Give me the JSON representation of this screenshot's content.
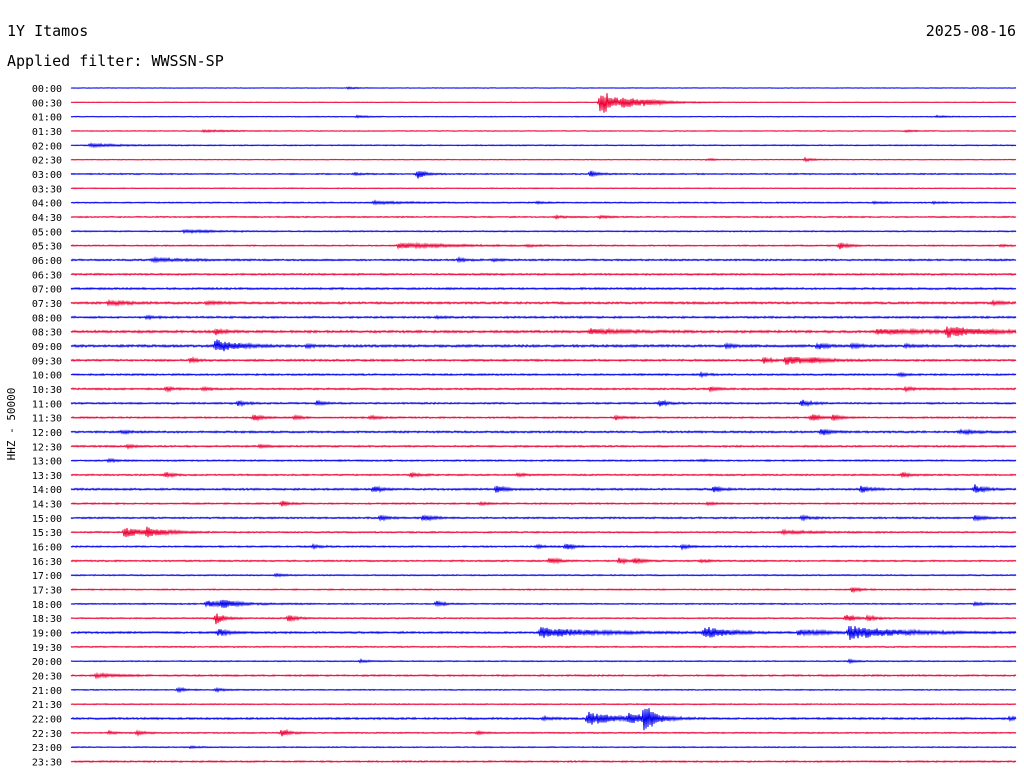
{
  "header": {
    "station": "1Y Itamos",
    "date": "2025-08-16",
    "filter": "Applied filter: WWSSN-SP"
  },
  "chart_data": {
    "type": "line",
    "title": "1Y Itamos",
    "subtitle": "Applied filter: WWSSN-SP",
    "ylabel": "HHZ - 50000",
    "row_labels": [
      "00:00",
      "00:30",
      "01:00",
      "01:30",
      "02:00",
      "02:30",
      "03:00",
      "03:30",
      "04:00",
      "04:30",
      "05:00",
      "05:30",
      "06:00",
      "06:30",
      "07:00",
      "07:30",
      "08:00",
      "08:30",
      "09:00",
      "09:30",
      "10:00",
      "10:30",
      "11:00",
      "11:30",
      "12:00",
      "12:30",
      "13:00",
      "13:30",
      "14:00",
      "14:30",
      "15:00",
      "15:30",
      "16:00",
      "16:30",
      "17:00",
      "17:30",
      "18:00",
      "18:30",
      "19:00",
      "19:30",
      "20:00",
      "20:30",
      "21:00",
      "21:30",
      "22:00",
      "22:30",
      "23:00",
      "23:30"
    ],
    "x_range_minutes": [
      0,
      30
    ],
    "colors": {
      "even_rows": "#0000ee",
      "odd_rows": "#ee0033"
    },
    "noise_level": [
      0.6,
      0.6,
      0.8,
      0.8,
      1.0,
      0.8,
      1.2,
      0.8,
      1.2,
      1.2,
      1.2,
      1.2,
      1.6,
      1.6,
      1.8,
      2.0,
      1.8,
      2.2,
      2.2,
      1.8,
      1.6,
      1.6,
      1.6,
      1.4,
      1.8,
      1.6,
      1.4,
      1.4,
      1.8,
      1.4,
      1.6,
      1.4,
      1.4,
      1.4,
      1.2,
      1.2,
      1.2,
      1.2,
      1.8,
      1.2,
      1.0,
      1.4,
      1.0,
      1.0,
      1.8,
      1.2,
      1.0,
      1.4
    ],
    "events": [
      {
        "row": 0,
        "t": 8.8,
        "amp": 2
      },
      {
        "row": 1,
        "t": 16.8,
        "amp": 28,
        "dur": 0.5
      },
      {
        "row": 1,
        "t": 17.5,
        "amp": 7,
        "dur": 1.0
      },
      {
        "row": 1,
        "t": 18.2,
        "amp": 3,
        "dur": 0.6
      },
      {
        "row": 2,
        "t": 9.1,
        "amp": 3
      },
      {
        "row": 2,
        "t": 27.5,
        "amp": 2
      },
      {
        "row": 3,
        "t": 4.2,
        "amp": 2,
        "dur": 0.8
      },
      {
        "row": 3,
        "t": 26.5,
        "amp": 2
      },
      {
        "row": 4,
        "t": 0.6,
        "amp": 3,
        "dur": 1.0
      },
      {
        "row": 5,
        "t": 20.2,
        "amp": 2
      },
      {
        "row": 5,
        "t": 23.3,
        "amp": 3
      },
      {
        "row": 6,
        "t": 11.0,
        "amp": 9
      },
      {
        "row": 6,
        "t": 16.5,
        "amp": 6
      },
      {
        "row": 6,
        "t": 9.0,
        "amp": 2
      },
      {
        "row": 8,
        "t": 9.6,
        "amp": 3,
        "dur": 0.8
      },
      {
        "row": 8,
        "t": 14.8,
        "amp": 2
      },
      {
        "row": 8,
        "t": 27.4,
        "amp": 2
      },
      {
        "row": 8,
        "t": 25.5,
        "amp": 2
      },
      {
        "row": 9,
        "t": 15.4,
        "amp": 3
      },
      {
        "row": 9,
        "t": 16.8,
        "amp": 3
      },
      {
        "row": 10,
        "t": 3.6,
        "amp": 3,
        "dur": 0.8
      },
      {
        "row": 11,
        "t": 10.4,
        "amp": 5,
        "dur": 1.5
      },
      {
        "row": 11,
        "t": 14.5,
        "amp": 2
      },
      {
        "row": 11,
        "t": 24.4,
        "amp": 7
      },
      {
        "row": 11,
        "t": 29.5,
        "amp": 2
      },
      {
        "row": 12,
        "t": 2.6,
        "amp": 3,
        "dur": 1.0
      },
      {
        "row": 12,
        "t": 12.3,
        "amp": 3
      },
      {
        "row": 12,
        "t": 13.4,
        "amp": 2
      },
      {
        "row": 15,
        "t": 1.2,
        "amp": 4,
        "dur": 0.6
      },
      {
        "row": 15,
        "t": 4.3,
        "amp": 3,
        "dur": 0.5
      },
      {
        "row": 15,
        "t": 29.3,
        "amp": 4
      },
      {
        "row": 16,
        "t": 2.4,
        "amp": 3
      },
      {
        "row": 16,
        "t": 11.6,
        "amp": 2
      },
      {
        "row": 17,
        "t": 4.6,
        "amp": 6
      },
      {
        "row": 17,
        "t": 16.5,
        "amp": 5,
        "dur": 1.0
      },
      {
        "row": 17,
        "t": 25.6,
        "amp": 5,
        "dur": 1.5
      },
      {
        "row": 17,
        "t": 27.8,
        "amp": 11,
        "dur": 0.9
      },
      {
        "row": 18,
        "t": 4.6,
        "amp": 14,
        "dur": 0.6
      },
      {
        "row": 18,
        "t": 7.5,
        "amp": 3
      },
      {
        "row": 18,
        "t": 20.8,
        "amp": 4
      },
      {
        "row": 18,
        "t": 23.7,
        "amp": 6
      },
      {
        "row": 18,
        "t": 24.8,
        "amp": 4
      },
      {
        "row": 18,
        "t": 26.5,
        "amp": 3
      },
      {
        "row": 19,
        "t": 3.8,
        "amp": 4
      },
      {
        "row": 19,
        "t": 22.0,
        "amp": 5
      },
      {
        "row": 19,
        "t": 22.7,
        "amp": 8,
        "dur": 0.8
      },
      {
        "row": 19,
        "t": 23.5,
        "amp": 4
      },
      {
        "row": 20,
        "t": 20.0,
        "amp": 3
      },
      {
        "row": 20,
        "t": 26.3,
        "amp": 3
      },
      {
        "row": 21,
        "t": 3.0,
        "amp": 4
      },
      {
        "row": 21,
        "t": 4.2,
        "amp": 3
      },
      {
        "row": 21,
        "t": 20.3,
        "amp": 4
      },
      {
        "row": 21,
        "t": 26.5,
        "amp": 4
      },
      {
        "row": 22,
        "t": 5.3,
        "amp": 5
      },
      {
        "row": 22,
        "t": 7.8,
        "amp": 4
      },
      {
        "row": 22,
        "t": 18.7,
        "amp": 5
      },
      {
        "row": 22,
        "t": 23.2,
        "amp": 7
      },
      {
        "row": 23,
        "t": 5.8,
        "amp": 7
      },
      {
        "row": 23,
        "t": 7.1,
        "amp": 4
      },
      {
        "row": 23,
        "t": 9.5,
        "amp": 4
      },
      {
        "row": 23,
        "t": 17.3,
        "amp": 4
      },
      {
        "row": 23,
        "t": 23.5,
        "amp": 8
      },
      {
        "row": 23,
        "t": 24.2,
        "amp": 5
      },
      {
        "row": 24,
        "t": 1.6,
        "amp": 3
      },
      {
        "row": 24,
        "t": 23.8,
        "amp": 7
      },
      {
        "row": 24,
        "t": 28.2,
        "amp": 3,
        "dur": 0.7
      },
      {
        "row": 25,
        "t": 1.8,
        "amp": 3
      },
      {
        "row": 25,
        "t": 6.0,
        "amp": 3
      },
      {
        "row": 26,
        "t": 1.2,
        "amp": 3
      },
      {
        "row": 26,
        "t": 20.0,
        "amp": 2
      },
      {
        "row": 27,
        "t": 3.0,
        "amp": 5
      },
      {
        "row": 27,
        "t": 10.8,
        "amp": 5
      },
      {
        "row": 27,
        "t": 14.2,
        "amp": 3
      },
      {
        "row": 27,
        "t": 26.4,
        "amp": 5
      },
      {
        "row": 28,
        "t": 9.6,
        "amp": 6
      },
      {
        "row": 28,
        "t": 13.5,
        "amp": 7
      },
      {
        "row": 28,
        "t": 20.4,
        "amp": 6
      },
      {
        "row": 28,
        "t": 25.1,
        "amp": 7
      },
      {
        "row": 28,
        "t": 28.7,
        "amp": 9
      },
      {
        "row": 29,
        "t": 6.7,
        "amp": 5
      },
      {
        "row": 29,
        "t": 13.0,
        "amp": 3
      },
      {
        "row": 29,
        "t": 20.2,
        "amp": 3
      },
      {
        "row": 30,
        "t": 9.8,
        "amp": 5
      },
      {
        "row": 30,
        "t": 11.2,
        "amp": 7
      },
      {
        "row": 30,
        "t": 23.2,
        "amp": 4
      },
      {
        "row": 30,
        "t": 28.7,
        "amp": 5
      },
      {
        "row": 31,
        "t": 1.7,
        "amp": 10,
        "dur": 0.6
      },
      {
        "row": 31,
        "t": 2.4,
        "amp": 8,
        "dur": 0.6
      },
      {
        "row": 31,
        "t": 22.6,
        "amp": 3,
        "dur": 1.0
      },
      {
        "row": 32,
        "t": 7.7,
        "amp": 3
      },
      {
        "row": 32,
        "t": 14.8,
        "amp": 3
      },
      {
        "row": 32,
        "t": 15.7,
        "amp": 7
      },
      {
        "row": 32,
        "t": 19.4,
        "amp": 4
      },
      {
        "row": 33,
        "t": 15.2,
        "amp": 7
      },
      {
        "row": 33,
        "t": 17.4,
        "amp": 6
      },
      {
        "row": 33,
        "t": 17.9,
        "amp": 5
      },
      {
        "row": 33,
        "t": 20.0,
        "amp": 3
      },
      {
        "row": 34,
        "t": 6.5,
        "amp": 3
      },
      {
        "row": 35,
        "t": 24.8,
        "amp": 5
      },
      {
        "row": 36,
        "t": 4.3,
        "amp": 6,
        "dur": 0.9
      },
      {
        "row": 36,
        "t": 4.8,
        "amp": 9
      },
      {
        "row": 36,
        "t": 11.6,
        "amp": 5
      },
      {
        "row": 36,
        "t": 28.7,
        "amp": 4
      },
      {
        "row": 37,
        "t": 4.6,
        "amp": 12
      },
      {
        "row": 37,
        "t": 6.9,
        "amp": 7
      },
      {
        "row": 37,
        "t": 24.6,
        "amp": 8
      },
      {
        "row": 37,
        "t": 25.3,
        "amp": 6
      },
      {
        "row": 38,
        "t": 4.7,
        "amp": 8
      },
      {
        "row": 38,
        "t": 14.9,
        "amp": 10,
        "dur": 1.5
      },
      {
        "row": 38,
        "t": 20.1,
        "amp": 12,
        "dur": 0.7
      },
      {
        "row": 38,
        "t": 23.1,
        "amp": 6,
        "dur": 0.8
      },
      {
        "row": 38,
        "t": 24.7,
        "amp": 13,
        "dur": 1.4
      },
      {
        "row": 40,
        "t": 9.2,
        "amp": 3
      },
      {
        "row": 40,
        "t": 24.7,
        "amp": 3
      },
      {
        "row": 41,
        "t": 0.8,
        "amp": 4,
        "dur": 0.6
      },
      {
        "row": 42,
        "t": 3.4,
        "amp": 4
      },
      {
        "row": 42,
        "t": 4.6,
        "amp": 4
      },
      {
        "row": 44,
        "t": 16.4,
        "amp": 14,
        "dur": 0.8
      },
      {
        "row": 44,
        "t": 17.7,
        "amp": 10,
        "dur": 0.7
      },
      {
        "row": 44,
        "t": 18.2,
        "amp": 30
      },
      {
        "row": 44,
        "t": 15.0,
        "amp": 3
      },
      {
        "row": 44,
        "t": 29.8,
        "amp": 4
      },
      {
        "row": 45,
        "t": 1.2,
        "amp": 3
      },
      {
        "row": 45,
        "t": 2.1,
        "amp": 4
      },
      {
        "row": 45,
        "t": 6.7,
        "amp": 8
      },
      {
        "row": 45,
        "t": 12.9,
        "amp": 3
      },
      {
        "row": 46,
        "t": 3.8,
        "amp": 2
      }
    ]
  }
}
